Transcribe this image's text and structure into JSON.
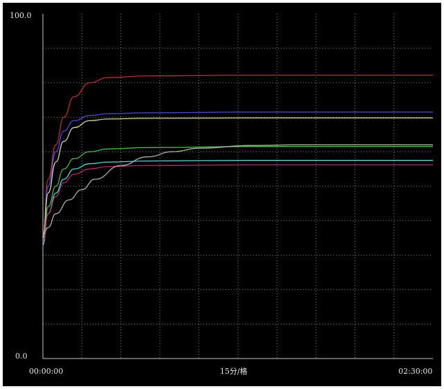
{
  "chart_data": {
    "type": "line",
    "title": "",
    "xlabel": "15分/格",
    "ylabel": "",
    "y_top_label": "100.0",
    "y_bottom_label": "0.0",
    "x_start_label": "00:00:00",
    "x_end_label": "02:30:00",
    "ylim": [
      0,
      100
    ],
    "xlim_minutes": [
      0,
      150
    ],
    "grid": "dotted",
    "background_color": "#000000",
    "series": [
      {
        "color": "#c0303a",
        "x": [
          0,
          2,
          5,
          8,
          12,
          18,
          25,
          40,
          80,
          150
        ],
        "values": [
          36,
          52,
          62,
          70,
          76,
          80,
          81.5,
          82,
          82.2,
          82.2
        ]
      },
      {
        "color": "#4a4ae0",
        "x": [
          0,
          2,
          5,
          8,
          12,
          18,
          25,
          40,
          80,
          150
        ],
        "values": [
          35,
          50,
          60,
          66,
          69,
          70.5,
          71,
          71.3,
          71.5,
          71.5
        ]
      },
      {
        "color": "#d8d8a0",
        "x": [
          0,
          2,
          5,
          8,
          12,
          18,
          25,
          40,
          80,
          150
        ],
        "values": [
          35,
          48,
          57,
          63,
          67,
          69,
          69.5,
          69.7,
          69.8,
          69.8
        ]
      },
      {
        "color": "#4ab84a",
        "x": [
          0,
          2,
          5,
          8,
          12,
          18,
          25,
          40,
          80,
          150
        ],
        "values": [
          34,
          44,
          50,
          55,
          58,
          60,
          60.8,
          61.2,
          61.5,
          61.5
        ]
      },
      {
        "color": "#60d8d8",
        "x": [
          0,
          2,
          5,
          8,
          12,
          18,
          25,
          40,
          80,
          150
        ],
        "values": [
          33,
          42,
          48,
          52,
          55,
          56.5,
          57,
          57.3,
          57.5,
          57.5
        ]
      },
      {
        "color": "#b03070",
        "x": [
          0,
          2,
          5,
          8,
          12,
          18,
          25,
          40,
          80,
          150
        ],
        "values": [
          34,
          42,
          47,
          51,
          53.5,
          55,
          55.7,
          56,
          56.2,
          56.2
        ]
      },
      {
        "color": "#b0b0b0",
        "x": [
          0,
          2,
          5,
          10,
          15,
          20,
          30,
          40,
          50,
          60,
          80,
          100,
          150
        ],
        "values": [
          36,
          38,
          42,
          46,
          49,
          52,
          56,
          58.5,
          60,
          61,
          61.8,
          62,
          62
        ]
      }
    ]
  }
}
